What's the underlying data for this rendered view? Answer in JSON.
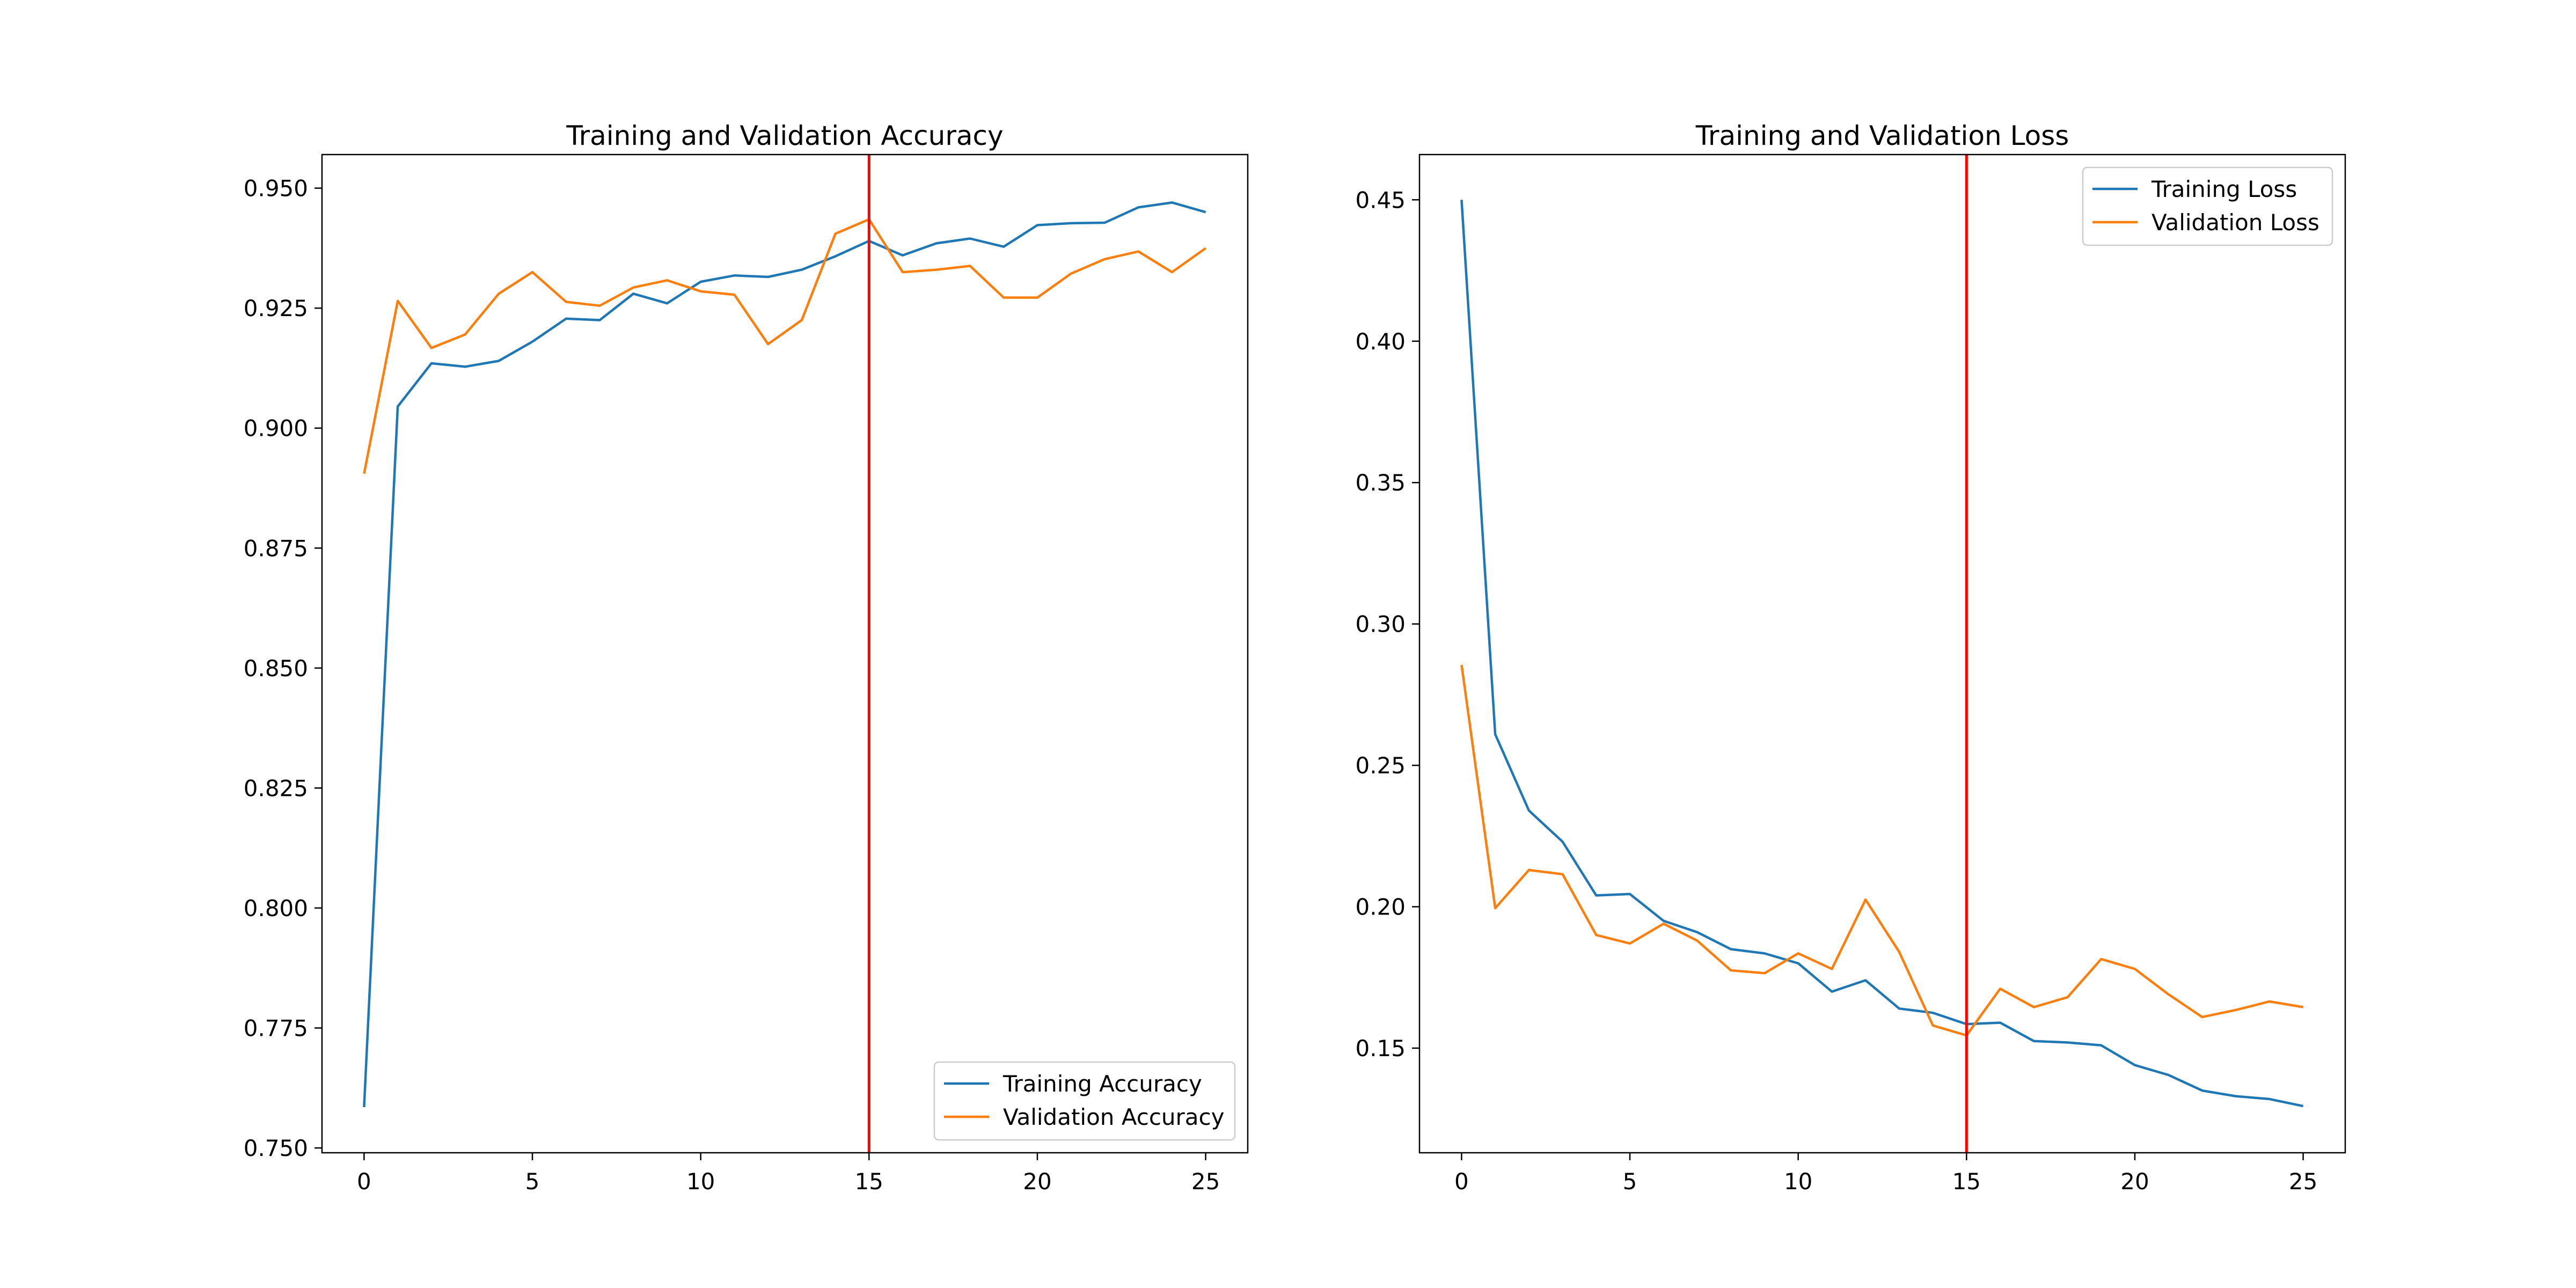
{
  "chart_data": [
    {
      "type": "line",
      "title": "Training and Validation Accuracy",
      "xlabel": "",
      "ylabel": "",
      "xlim": [
        -1.25,
        26.25
      ],
      "ylim": [
        0.749,
        0.957
      ],
      "xticks": [
        0,
        5,
        10,
        15,
        20,
        25
      ],
      "xtick_labels": [
        "0",
        "5",
        "10",
        "15",
        "20",
        "25"
      ],
      "yticks": [
        0.75,
        0.775,
        0.8,
        0.825,
        0.85,
        0.875,
        0.9,
        0.925,
        0.95
      ],
      "ytick_labels": [
        "0.750",
        "0.775",
        "0.800",
        "0.825",
        "0.850",
        "0.875",
        "0.900",
        "0.925",
        "0.950"
      ],
      "grid": false,
      "legend_position": "lower-right",
      "vline": {
        "x": 15,
        "color": "#ff0000"
      },
      "x": [
        0,
        1,
        2,
        3,
        4,
        5,
        6,
        7,
        8,
        9,
        10,
        11,
        12,
        13,
        14,
        15,
        16,
        17,
        18,
        19,
        20,
        21,
        22,
        23,
        24,
        25
      ],
      "series": [
        {
          "name": "Training Accuracy",
          "color": "#1f77b4",
          "values": [
            0.7585,
            0.9045,
            0.9135,
            0.9128,
            0.914,
            0.918,
            0.9228,
            0.9225,
            0.928,
            0.926,
            0.9305,
            0.9318,
            0.9315,
            0.933,
            0.9358,
            0.939,
            0.936,
            0.9385,
            0.9395,
            0.9378,
            0.9423,
            0.9427,
            0.9428,
            0.946,
            0.947,
            0.945
          ]
        },
        {
          "name": "Validation Accuracy",
          "color": "#ff7f0e",
          "values": [
            0.8905,
            0.9265,
            0.9167,
            0.9195,
            0.928,
            0.9325,
            0.9263,
            0.9255,
            0.9293,
            0.9308,
            0.9285,
            0.9278,
            0.9175,
            0.9225,
            0.9405,
            0.9435,
            0.9325,
            0.933,
            0.9338,
            0.9272,
            0.9272,
            0.9322,
            0.9352,
            0.9368,
            0.9325,
            0.9375
          ]
        }
      ]
    },
    {
      "type": "line",
      "title": "Training and Validation Loss",
      "xlabel": "",
      "ylabel": "",
      "xlim": [
        -1.25,
        26.25
      ],
      "ylim": [
        0.113,
        0.466
      ],
      "xticks": [
        0,
        5,
        10,
        15,
        20,
        25
      ],
      "xtick_labels": [
        "0",
        "5",
        "10",
        "15",
        "20",
        "25"
      ],
      "yticks": [
        0.15,
        0.2,
        0.25,
        0.3,
        0.35,
        0.4,
        0.45
      ],
      "ytick_labels": [
        "0.15",
        "0.20",
        "0.25",
        "0.30",
        "0.35",
        "0.40",
        "0.45"
      ],
      "grid": false,
      "legend_position": "upper-right",
      "vline": {
        "x": 15,
        "color": "#ff0000"
      },
      "x": [
        0,
        1,
        2,
        3,
        4,
        5,
        6,
        7,
        8,
        9,
        10,
        11,
        12,
        13,
        14,
        15,
        16,
        17,
        18,
        19,
        20,
        21,
        22,
        23,
        24,
        25
      ],
      "series": [
        {
          "name": "Training Loss",
          "color": "#1f77b4",
          "values": [
            0.45,
            0.261,
            0.234,
            0.223,
            0.204,
            0.2045,
            0.195,
            0.191,
            0.185,
            0.1835,
            0.18,
            0.17,
            0.174,
            0.164,
            0.1625,
            0.1585,
            0.159,
            0.1525,
            0.152,
            0.151,
            0.144,
            0.1405,
            0.135,
            0.133,
            0.132,
            0.1295
          ]
        },
        {
          "name": "Validation Loss",
          "color": "#ff7f0e",
          "values": [
            0.2855,
            0.1995,
            0.213,
            0.2115,
            0.19,
            0.187,
            0.194,
            0.188,
            0.1775,
            0.1765,
            0.1835,
            0.178,
            0.2025,
            0.184,
            0.158,
            0.1545,
            0.171,
            0.1645,
            0.168,
            0.1815,
            0.178,
            0.169,
            0.161,
            0.1635,
            0.1665,
            0.1645
          ]
        }
      ]
    }
  ]
}
